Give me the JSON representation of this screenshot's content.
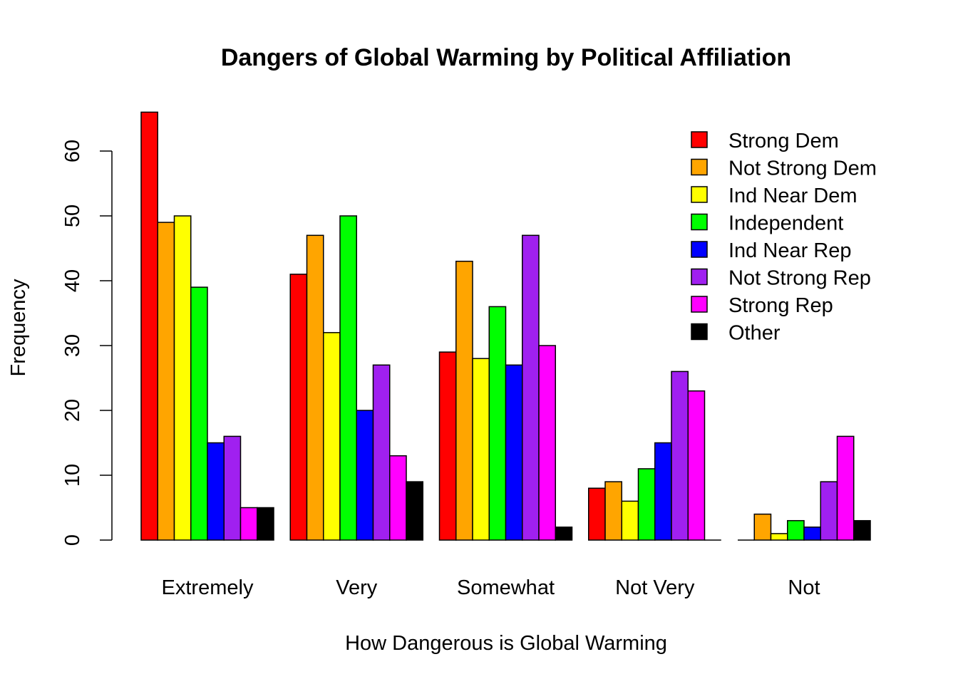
{
  "chart_data": {
    "type": "bar",
    "title": "Dangers of Global Warming by Political Affiliation",
    "xlabel": "How Dangerous is Global Warming",
    "ylabel": "Frequency",
    "ylim": [
      0,
      66
    ],
    "y_ticks": [
      "0",
      "10",
      "20",
      "30",
      "40",
      "50",
      "60"
    ],
    "categories": [
      "Extremely",
      "Very",
      "Somewhat",
      "Not Very",
      "Not"
    ],
    "grid": false,
    "legend_position": "top-right",
    "series": [
      {
        "name": "Strong Dem",
        "color": "#FF0000",
        "values": [
          66,
          41,
          29,
          8,
          0
        ]
      },
      {
        "name": "Not Strong Dem",
        "color": "#FFA500",
        "values": [
          49,
          47,
          43,
          9,
          4
        ]
      },
      {
        "name": "Ind Near Dem",
        "color": "#FFFF00",
        "values": [
          50,
          32,
          28,
          6,
          1
        ]
      },
      {
        "name": "Independent",
        "color": "#00FF00",
        "values": [
          39,
          50,
          36,
          11,
          3
        ]
      },
      {
        "name": "Ind Near Rep",
        "color": "#0000FF",
        "values": [
          15,
          20,
          27,
          15,
          2
        ]
      },
      {
        "name": "Not Strong Rep",
        "color": "#A020F0",
        "values": [
          16,
          27,
          47,
          26,
          9
        ]
      },
      {
        "name": "Strong Rep",
        "color": "#FF00FF",
        "values": [
          5,
          13,
          30,
          23,
          16
        ]
      },
      {
        "name": "Other",
        "color": "#000000",
        "values": [
          5,
          9,
          2,
          0,
          3
        ]
      }
    ]
  }
}
